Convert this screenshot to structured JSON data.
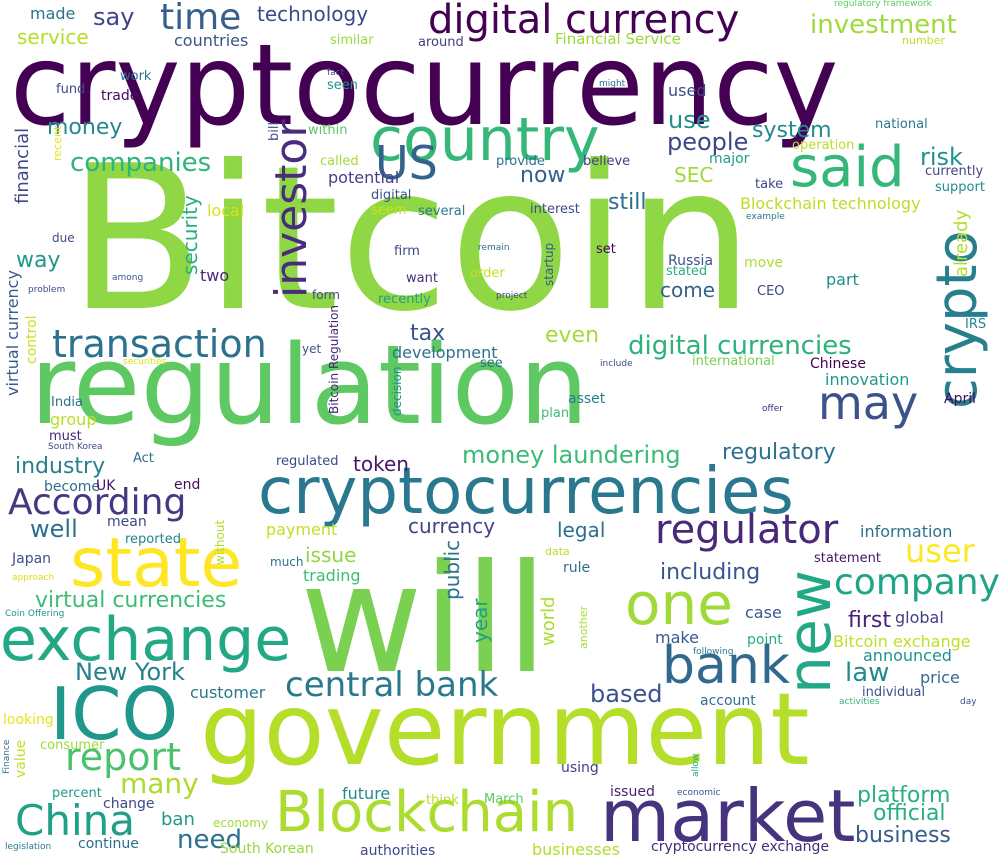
{
  "words": [
    {
      "text": "cryptocurrency",
      "color": "#440154"
    },
    {
      "text": "Bitcoin",
      "color": "#8fd744"
    },
    {
      "text": "regulation",
      "color": "#5ec962"
    },
    {
      "text": "will",
      "color": "#7ad151"
    },
    {
      "text": "government",
      "color": "#b5de2b"
    },
    {
      "text": "cryptocurrencies",
      "color": "#2a788e"
    },
    {
      "text": "country",
      "color": "#35b779"
    },
    {
      "text": "digital currency",
      "color": "#440154"
    },
    {
      "text": "market",
      "color": "#46337e"
    },
    {
      "text": "exchange",
      "color": "#22a884"
    },
    {
      "text": "Blockchain",
      "color": "#addc30"
    },
    {
      "text": "ICO",
      "color": "#1f978b"
    },
    {
      "text": "state",
      "color": "#fde725"
    },
    {
      "text": "crypto",
      "color": "#277f8e"
    },
    {
      "text": "new",
      "color": "#22a884"
    },
    {
      "text": "one",
      "color": "#a0da39"
    },
    {
      "text": "bank",
      "color": "#31688e"
    },
    {
      "text": "said",
      "color": "#35b779"
    },
    {
      "text": "may",
      "color": "#3b528b"
    },
    {
      "text": "China",
      "color": "#1fa187"
    },
    {
      "text": "regulator",
      "color": "#482878"
    },
    {
      "text": "company",
      "color": "#20a486"
    },
    {
      "text": "transaction",
      "color": "#2c728e"
    },
    {
      "text": "central bank",
      "color": "#2a788e"
    },
    {
      "text": "report",
      "color": "#4ac16d"
    },
    {
      "text": "According",
      "color": "#453781"
    },
    {
      "text": "investor",
      "color": "#472d7b"
    },
    {
      "text": "US",
      "color": "#33638d"
    },
    {
      "text": "time",
      "color": "#355f8d"
    },
    {
      "text": "digital currencies",
      "color": "#2db27d"
    },
    {
      "text": "user",
      "color": "#fde725"
    },
    {
      "text": "platform",
      "color": "#29af7f"
    },
    {
      "text": "money laundering",
      "color": "#3bbb75"
    },
    {
      "text": "many",
      "color": "#addc30"
    },
    {
      "text": "business",
      "color": "#365c8d"
    },
    {
      "text": "investment",
      "color": "#9fda3a"
    },
    {
      "text": "even",
      "color": "#a5db36"
    },
    {
      "text": "New York",
      "color": "#26818e"
    },
    {
      "text": "virtual currencies",
      "color": "#3dbc74"
    },
    {
      "text": "companies",
      "color": "#2fb47c"
    },
    {
      "text": "regulatory",
      "color": "#2d708e"
    },
    {
      "text": "people",
      "color": "#3f4788"
    },
    {
      "text": "tax",
      "color": "#3a548c"
    },
    {
      "text": "industry",
      "color": "#27808e"
    },
    {
      "text": "including",
      "color": "#39568c"
    },
    {
      "text": "need",
      "color": "#2c728e"
    },
    {
      "text": "law",
      "color": "#228b8d"
    },
    {
      "text": "based",
      "color": "#3b528b"
    },
    {
      "text": "first",
      "color": "#482374"
    },
    {
      "text": "official",
      "color": "#28ae80"
    },
    {
      "text": "money",
      "color": "#23898e"
    },
    {
      "text": "system",
      "color": "#238a8d"
    },
    {
      "text": "risk",
      "color": "#21918c"
    },
    {
      "text": "way",
      "color": "#1f988b"
    },
    {
      "text": "still",
      "color": "#2e6e8e"
    },
    {
      "text": "now",
      "color": "#355f8d"
    },
    {
      "text": "use",
      "color": "#21918c"
    },
    {
      "text": "say",
      "color": "#414487"
    },
    {
      "text": "security",
      "color": "#2ab07f"
    },
    {
      "text": "token",
      "color": "#481668"
    },
    {
      "text": "well",
      "color": "#2e6f8e"
    },
    {
      "text": "issue",
      "color": "#8ed645"
    },
    {
      "text": "legal",
      "color": "#2d708e"
    },
    {
      "text": "year",
      "color": "#1f9e89"
    },
    {
      "text": "public",
      "color": "#2b758e"
    },
    {
      "text": "currency",
      "color": "#414487"
    },
    {
      "text": "world",
      "color": "#aadc32"
    },
    {
      "text": "come",
      "color": "#33638d"
    },
    {
      "text": "development",
      "color": "#2d718e"
    },
    {
      "text": "technology",
      "color": "#3e4989"
    },
    {
      "text": "service",
      "color": "#b5de2b"
    },
    {
      "text": "Blockchain technology",
      "color": "#b8de29"
    },
    {
      "text": "Financial Service",
      "color": "#9bd93c"
    },
    {
      "text": "countries",
      "color": "#3b528b"
    },
    {
      "text": "made",
      "color": "#2c738e"
    },
    {
      "text": "financial",
      "color": "#3e4a89"
    },
    {
      "text": "virtual currency",
      "color": "#375a8c"
    },
    {
      "text": "SEC",
      "color": "#9fda3a"
    },
    {
      "text": "innovation",
      "color": "#1f988b"
    },
    {
      "text": "announced",
      "color": "#21918c"
    },
    {
      "text": "price",
      "color": "#2f6c8e"
    },
    {
      "text": "global",
      "color": "#423f85"
    },
    {
      "text": "make",
      "color": "#38588c"
    },
    {
      "text": "case",
      "color": "#375a8c"
    },
    {
      "text": "trading",
      "color": "#3dbc74"
    },
    {
      "text": "group",
      "color": "#bade28"
    },
    {
      "text": "customer",
      "color": "#2a788e"
    },
    {
      "text": "payment",
      "color": "#c2df23"
    },
    {
      "text": "ban",
      "color": "#1f9a8a"
    },
    {
      "text": "future",
      "color": "#23898e"
    },
    {
      "text": "information",
      "color": "#2c728e"
    },
    {
      "text": "potential",
      "color": "#433e85"
    },
    {
      "text": "Russia",
      "color": "#3b528b"
    },
    {
      "text": "move",
      "color": "#b0dd2f"
    },
    {
      "text": "part",
      "color": "#228c8d"
    },
    {
      "text": "two",
      "color": "#472c7a"
    },
    {
      "text": "local",
      "color": "#d8e219"
    },
    {
      "text": "already",
      "color": "#b2dd2d"
    },
    {
      "text": "used",
      "color": "#3c4f8a"
    },
    {
      "text": "Bitcoin exchange",
      "color": "#c0df25"
    },
    {
      "text": "point",
      "color": "#25ab82"
    },
    {
      "text": "South Korean",
      "color": "#98d83e"
    },
    {
      "text": "authorities",
      "color": "#3f4889"
    },
    {
      "text": "businesses",
      "color": "#b2dd2d"
    },
    {
      "text": "cryptocurrency exchange",
      "color": "#472c7a"
    },
    {
      "text": "continue",
      "color": "#2e6e8e"
    },
    {
      "text": "economy",
      "color": "#a2da37"
    },
    {
      "text": "percent",
      "color": "#1f9a8a"
    },
    {
      "text": "change",
      "color": "#3f4889"
    },
    {
      "text": "consumer",
      "color": "#9dd93b"
    },
    {
      "text": "value",
      "color": "#c0df25"
    },
    {
      "text": "looking",
      "color": "#e5e419"
    },
    {
      "text": "mean",
      "color": "#3f4889"
    },
    {
      "text": "Japan",
      "color": "#3a548c"
    },
    {
      "text": "become",
      "color": "#2f6c8e"
    },
    {
      "text": "UK",
      "color": "#471365"
    },
    {
      "text": "end",
      "color": "#460b5e"
    },
    {
      "text": "reported",
      "color": "#26828e"
    },
    {
      "text": "Act",
      "color": "#2f6c8e"
    },
    {
      "text": "must",
      "color": "#482475"
    },
    {
      "text": "India",
      "color": "#2e6f8e"
    },
    {
      "text": "control",
      "color": "#c8e020"
    },
    {
      "text": "Chinese",
      "color": "#440154"
    },
    {
      "text": "April",
      "color": "#46085c"
    },
    {
      "text": "statement",
      "color": "#471365"
    },
    {
      "text": "individual",
      "color": "#3b528b"
    },
    {
      "text": "account",
      "color": "#2d708e"
    },
    {
      "text": "using",
      "color": "#433e85"
    },
    {
      "text": "issued",
      "color": "#481f70"
    },
    {
      "text": "think",
      "color": "#b5de2b"
    },
    {
      "text": "March",
      "color": "#5ec962"
    },
    {
      "text": "rule",
      "color": "#2d708e"
    },
    {
      "text": "asset",
      "color": "#277f8e"
    },
    {
      "text": "plan",
      "color": "#3fbc73"
    },
    {
      "text": "regulated",
      "color": "#3e4a89"
    },
    {
      "text": "set",
      "color": "#450559"
    },
    {
      "text": "stated",
      "color": "#29af7f"
    },
    {
      "text": "CEO",
      "color": "#3f4788"
    },
    {
      "text": "firm",
      "color": "#3e4989"
    },
    {
      "text": "want",
      "color": "#472f7d"
    },
    {
      "text": "order",
      "color": "#c5e021"
    },
    {
      "text": "recently",
      "color": "#1fa088"
    },
    {
      "text": "form",
      "color": "#3e4c8a"
    },
    {
      "text": "yet",
      "color": "#3b528b"
    },
    {
      "text": "see",
      "color": "#2d718e"
    },
    {
      "text": "take",
      "color": "#414487"
    },
    {
      "text": "interest",
      "color": "#3e4c8a"
    },
    {
      "text": "believe",
      "color": "#433e85"
    },
    {
      "text": "provide",
      "color": "#2d718e"
    },
    {
      "text": "several",
      "color": "#2a788e"
    },
    {
      "text": "seem",
      "color": "#c8e020"
    },
    {
      "text": "digital",
      "color": "#3b528b"
    },
    {
      "text": "called",
      "color": "#a2da37"
    },
    {
      "text": "major",
      "color": "#1f9e89"
    },
    {
      "text": "currently",
      "color": "#404688"
    },
    {
      "text": "support",
      "color": "#238a8d"
    },
    {
      "text": "national",
      "color": "#2a788e"
    },
    {
      "text": "operation",
      "color": "#bade28"
    },
    {
      "text": "within",
      "color": "#5ec962"
    },
    {
      "text": "seen",
      "color": "#21918c"
    },
    {
      "text": "fact",
      "color": "#3e4a89"
    },
    {
      "text": "trade",
      "color": "#460b5e"
    },
    {
      "text": "work",
      "color": "#2c728e"
    },
    {
      "text": "fund",
      "color": "#3e4a89"
    },
    {
      "text": "similar",
      "color": "#9bd93c"
    },
    {
      "text": "around",
      "color": "#433e85"
    },
    {
      "text": "regulatory framework",
      "color": "#5ec962"
    },
    {
      "text": "number",
      "color": "#c2df23"
    },
    {
      "text": "might",
      "color": "#2e6f8e"
    },
    {
      "text": "example",
      "color": "#2a788e"
    },
    {
      "text": "remain",
      "color": "#2d708e"
    },
    {
      "text": "project",
      "color": "#3f4889"
    },
    {
      "text": "startup",
      "color": "#39568c"
    },
    {
      "text": "include",
      "color": "#3e4a89"
    },
    {
      "text": "international",
      "color": "#7ad151"
    },
    {
      "text": "IRS",
      "color": "#24868e"
    },
    {
      "text": "offer",
      "color": "#472c7a"
    },
    {
      "text": "day",
      "color": "#3b528b"
    },
    {
      "text": "activities",
      "color": "#2fb47c"
    },
    {
      "text": "following",
      "color": "#2a788e"
    },
    {
      "text": "allow",
      "color": "#25ab82"
    },
    {
      "text": "economic",
      "color": "#3b528b"
    },
    {
      "text": "another",
      "color": "#a8db34"
    },
    {
      "text": "decision",
      "color": "#21918c"
    },
    {
      "text": "Bitcoin Regulation",
      "color": "#482878"
    },
    {
      "text": "data",
      "color": "#bddf26"
    },
    {
      "text": "without",
      "color": "#b2dd2d"
    },
    {
      "text": "much",
      "color": "#2c728e"
    },
    {
      "text": "South Korea",
      "color": "#3e4a89"
    },
    {
      "text": "among",
      "color": "#39568c"
    },
    {
      "text": "problem",
      "color": "#3e4a89"
    },
    {
      "text": "due",
      "color": "#3e4a89"
    },
    {
      "text": "recent",
      "color": "#e5e419"
    },
    {
      "text": "bill",
      "color": "#3b528b"
    },
    {
      "text": "securities",
      "color": "#d8e219"
    },
    {
      "text": "approach",
      "color": "#d8e219"
    },
    {
      "text": "Coin Offering",
      "color": "#21918c"
    },
    {
      "text": "Finance",
      "color": "#2f6c8e"
    },
    {
      "text": "legislation",
      "color": "#2a788e"
    }
  ]
}
